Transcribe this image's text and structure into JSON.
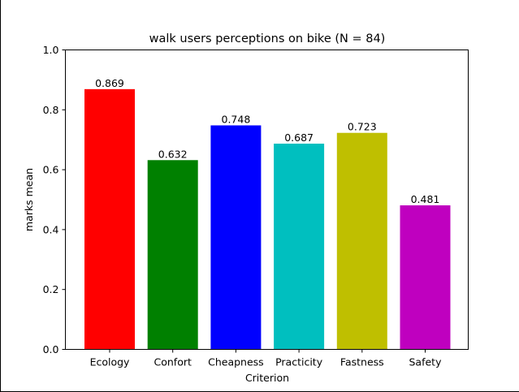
{
  "chart_data": {
    "type": "bar",
    "title": "walk users perceptions on bike (N = 84)",
    "xlabel": "Criterion",
    "ylabel": "marks mean",
    "ylim": [
      0,
      1.0
    ],
    "yticks": [
      "0.0",
      "0.2",
      "0.4",
      "0.6",
      "0.8",
      "1.0"
    ],
    "categories": [
      "Ecology",
      "Confort",
      "Cheapness",
      "Practicity",
      "Fastness",
      "Safety"
    ],
    "values": [
      0.869,
      0.632,
      0.748,
      0.687,
      0.723,
      0.481
    ],
    "value_labels": [
      "0.869",
      "0.632",
      "0.748",
      "0.687",
      "0.723",
      "0.481"
    ],
    "colors": [
      "#ff0000",
      "#008000",
      "#0000ff",
      "#00bfbf",
      "#bfbf00",
      "#bf00bf"
    ],
    "grid": false,
    "legend": "none"
  }
}
